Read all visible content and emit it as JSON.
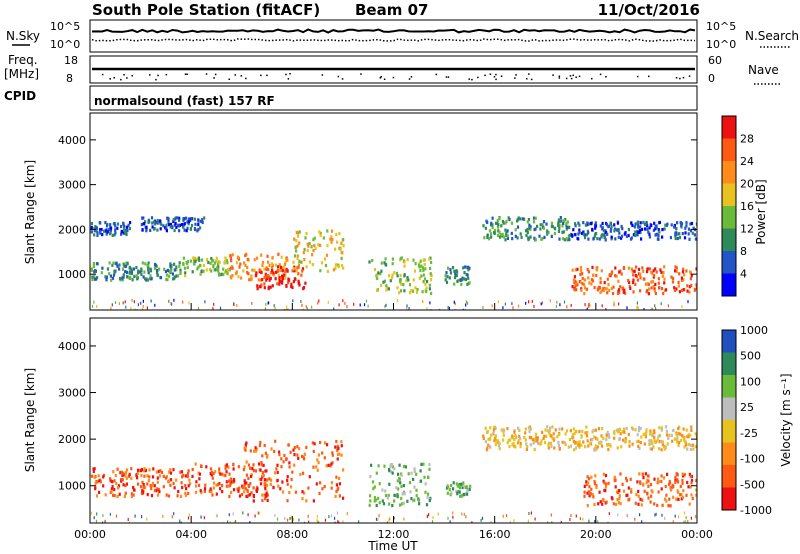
{
  "header": {
    "title": "South Pole Station (fitACF)",
    "beam": "Beam 07",
    "date": "11/Oct/2016"
  },
  "top_panel": {
    "nsky_label": "N.Sky",
    "nsearch_label": "N.Search",
    "noise_ticks_left": [
      "10^5",
      "10^0"
    ],
    "noise_ticks_right": [
      "10^5",
      "10^0"
    ],
    "freq_label": "Freq.",
    "freq_unit": "[MHz]",
    "freq_ticks": [
      "18",
      "8"
    ],
    "nave_label": "Nave",
    "nave_ticks": [
      "60",
      "0"
    ],
    "cpid_label": "CPID",
    "cpid_text": "normalsound (fast) 157 RF"
  },
  "chart_data": [
    {
      "type": "heatmap",
      "name": "power",
      "ylabel": "Slant Range [km]",
      "yticks": [
        "1000",
        "2000",
        "3000",
        "4000"
      ],
      "ylim": [
        200,
        4600
      ],
      "xlim": [
        0,
        24
      ],
      "colorbar_label": "Power [dB]",
      "colorbar_ticks": [
        "28",
        "24",
        "20",
        "16",
        "12",
        "8",
        "4"
      ],
      "colorbar_colors": [
        "#0000ff",
        "#2255c8",
        "#2f8a5a",
        "#6bbb3a",
        "#e8c21f",
        "#ff8c1a",
        "#ff5a14",
        "#ee1111"
      ],
      "regions": [
        {
          "t0": 0.0,
          "t1": 1.6,
          "r0": 1900,
          "r1": 2200,
          "v": 4
        },
        {
          "t0": 2.0,
          "t1": 4.5,
          "r0": 2000,
          "r1": 2300,
          "v": 5
        },
        {
          "t0": 0.0,
          "t1": 3.5,
          "r0": 900,
          "r1": 1300,
          "v": 9
        },
        {
          "t0": 3.5,
          "t1": 5.5,
          "r0": 1000,
          "r1": 1400,
          "v": 12
        },
        {
          "t0": 5.5,
          "t1": 7.8,
          "r0": 900,
          "r1": 1500,
          "v": 20
        },
        {
          "t0": 6.5,
          "t1": 8.5,
          "r0": 700,
          "r1": 1200,
          "v": 26
        },
        {
          "t0": 8.0,
          "t1": 10.0,
          "r0": 1100,
          "r1": 2000,
          "v": 17
        },
        {
          "t0": 11.0,
          "t1": 13.5,
          "r0": 600,
          "r1": 1400,
          "v": 13
        },
        {
          "t0": 14.0,
          "t1": 15.0,
          "r0": 800,
          "r1": 1200,
          "v": 6
        },
        {
          "t0": 15.5,
          "t1": 19.0,
          "r0": 1800,
          "r1": 2300,
          "v": 8
        },
        {
          "t0": 19.0,
          "t1": 24.0,
          "r0": 1800,
          "r1": 2200,
          "v": 4
        },
        {
          "t0": 19.0,
          "t1": 24.0,
          "r0": 600,
          "r1": 1200,
          "v": 23
        }
      ]
    },
    {
      "type": "heatmap",
      "name": "velocity",
      "ylabel": "Slant Range [km]",
      "xlabel": "Time UT",
      "yticks": [
        "1000",
        "2000",
        "3000",
        "4000"
      ],
      "xticks": [
        "00:00",
        "04:00",
        "08:00",
        "12:00",
        "16:00",
        "20:00",
        "00:00"
      ],
      "ylim": [
        200,
        4600
      ],
      "xlim": [
        0,
        24
      ],
      "colorbar_label": "Velocity [m s⁻¹]",
      "colorbar_ticks": [
        "1000",
        "500",
        "100",
        "25",
        "-25",
        "-100",
        "-500",
        "-1000"
      ],
      "colorbar_colors": [
        "#2050c0",
        "#2f8a5a",
        "#6bbb3a",
        "#bdbdbd",
        "#e8c21f",
        "#ff8c1a",
        "#ff5a14",
        "#ee1111"
      ],
      "regions": [
        {
          "t0": 0.0,
          "t1": 4.0,
          "r0": 800,
          "r1": 1400,
          "v": -300
        },
        {
          "t0": 4.0,
          "t1": 7.0,
          "r0": 800,
          "r1": 1500,
          "v": -150
        },
        {
          "t0": 6.0,
          "t1": 10.0,
          "r0": 700,
          "r1": 2000,
          "v": -500
        },
        {
          "t0": 11.0,
          "t1": 13.5,
          "r0": 600,
          "r1": 1500,
          "v": 200
        },
        {
          "t0": 14.0,
          "t1": 15.0,
          "r0": 800,
          "r1": 1100,
          "v": 300
        },
        {
          "t0": 15.5,
          "t1": 24.0,
          "r0": 1800,
          "r1": 2300,
          "v": 0
        },
        {
          "t0": 19.5,
          "t1": 24.0,
          "r0": 600,
          "r1": 1300,
          "v": -400
        }
      ]
    }
  ]
}
